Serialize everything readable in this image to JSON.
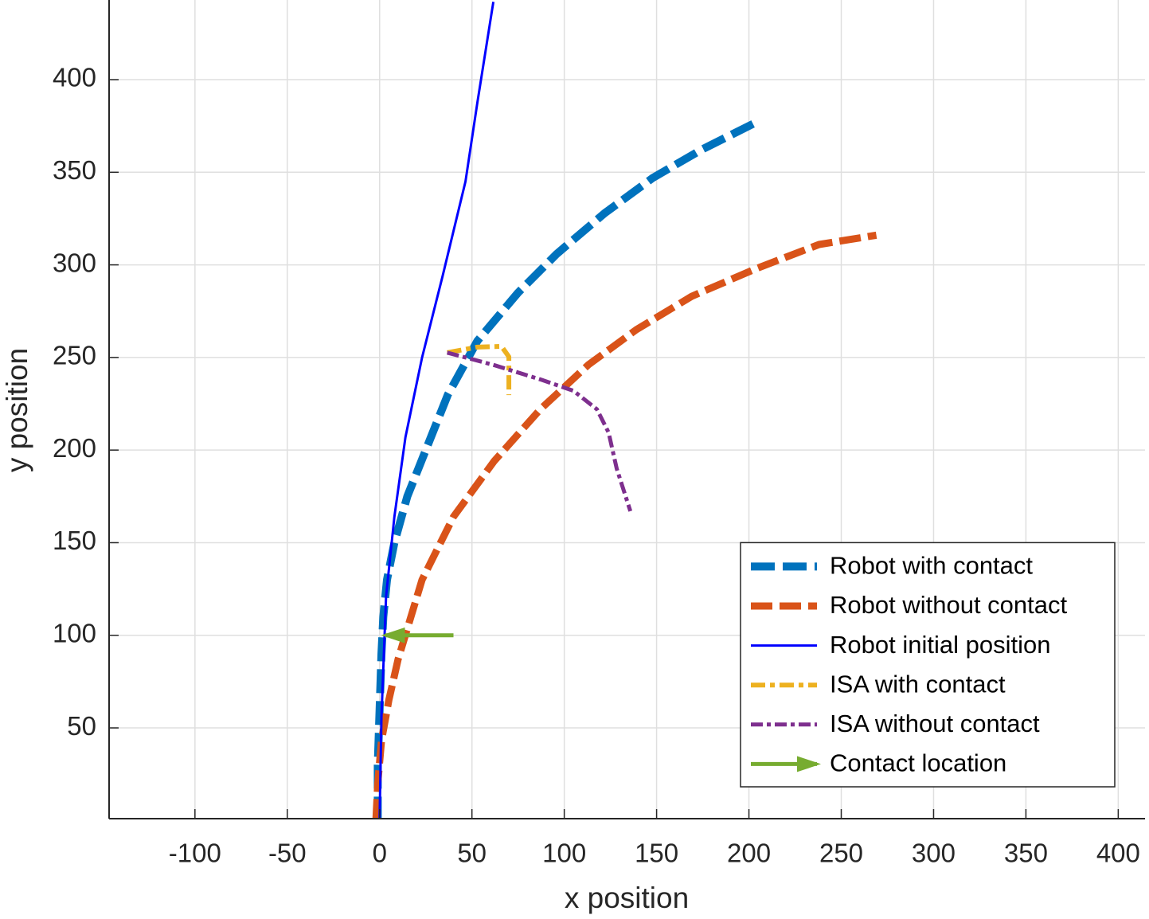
{
  "chart_data": {
    "type": "line",
    "xlabel": "x position",
    "ylabel": "y position",
    "xlim": [
      -146.5,
      414.5
    ],
    "ylim": [
      1,
      443
    ],
    "xticks": [
      -100,
      -50,
      0,
      50,
      100,
      150,
      200,
      250,
      300,
      350,
      400
    ],
    "yticks": [
      50,
      100,
      150,
      200,
      250,
      300,
      350,
      400
    ],
    "grid": true,
    "legend_position": "lower right",
    "series": [
      {
        "name": "Robot with contact",
        "color": "#0072bd",
        "line_style": "dashed",
        "line_width": 10,
        "x": [
          -1,
          -1,
          0,
          1,
          2,
          4,
          8,
          15,
          25,
          37,
          53,
          75,
          96,
          122,
          148,
          174,
          206
        ],
        "values": [
          0,
          30,
          60,
          90,
          110,
          130,
          150,
          175,
          200,
          230,
          259,
          285,
          306,
          328,
          347,
          362,
          378
        ]
      },
      {
        "name": "Robot without contact",
        "color": "#d95319",
        "line_style": "dashed",
        "line_width": 9,
        "x": [
          -2,
          -1,
          1,
          5,
          10,
          23,
          40,
          62,
          87,
          113,
          139,
          169,
          204,
          238,
          269
        ],
        "values": [
          0,
          20,
          43,
          65,
          87,
          130,
          164,
          194,
          222,
          246,
          265,
          283,
          298,
          311,
          316
        ]
      },
      {
        "name": "Robot initial position",
        "color": "#0000ff",
        "line_style": "solid",
        "line_width": 3,
        "x": [
          0,
          1,
          3.5,
          8,
          14,
          23,
          34,
          46.5,
          53,
          61.6
        ],
        "values": [
          1,
          56,
          121,
          164,
          207,
          250,
          293.5,
          345,
          388,
          442
        ]
      },
      {
        "name": "ISA with contact",
        "color": "#edb120",
        "line_style": "dashdot",
        "line_width": 6,
        "x": [
          36.6,
          53,
          66,
          70,
          70
        ],
        "values": [
          252.6,
          255.6,
          256,
          250.4,
          229.7
        ]
      },
      {
        "name": "ISA without contact",
        "color": "#7e2f8e",
        "line_style": "dashdot",
        "line_width": 5,
        "x": [
          36.6,
          61.6,
          87.5,
          105,
          117.7,
          124,
          128.4,
          135.8
        ],
        "values": [
          252.6,
          246,
          238,
          232,
          222,
          209.5,
          190,
          167
        ]
      },
      {
        "name": "Contact location",
        "color": "#77ac30",
        "line_style": "arrow",
        "line_width": 5,
        "x": [
          40,
          3
        ],
        "values": [
          100,
          100
        ]
      }
    ]
  }
}
